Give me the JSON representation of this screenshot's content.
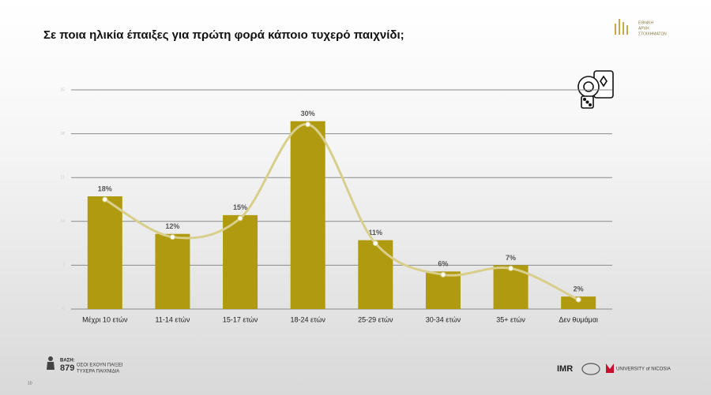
{
  "chart_data": {
    "type": "bar",
    "title": "Σε ποια ηλικία έπαιξες για πρώτη φορά κάποιο τυχερό παιχνίδι;",
    "categories": [
      "Μέχρι 10 ετών",
      "11-14 ετών",
      "15-17 ετών",
      "18-24 ετών",
      "25-29 ετών",
      "30-34 ετών",
      "35+ ετών",
      "Δεν θυμάμαι"
    ],
    "values": [
      18,
      12,
      15,
      30,
      11,
      6,
      7,
      2
    ],
    "value_labels": [
      "18%",
      "12%",
      "15%",
      "30%",
      "11%",
      "6%",
      "7%",
      "2%"
    ],
    "color": "#b09a10",
    "line_color": "#d8cf8c",
    "ylim": [
      0,
      35
    ],
    "yticks": [
      0,
      7,
      14,
      21,
      28,
      35
    ],
    "grid": true
  },
  "base": {
    "label": "ΒΑΣΗ:",
    "count": "879",
    "description": [
      "ΟΣΟΙ ΕΧΟΥΝ ΠΑΙΞΕΙ",
      "ΤΥΧΕΡΑ ΠΑΙΧΝΙΔΙΑ"
    ]
  },
  "page_number": "10",
  "logos": {
    "authority": [
      "ΕΘΝΙΚΗ",
      "ΑΡΧΗ",
      "ΣΤΟΙΧΗΜΑΤΩΝ"
    ],
    "imr": "IMR",
    "university": "UNIVERSITY of NICOSIA"
  }
}
